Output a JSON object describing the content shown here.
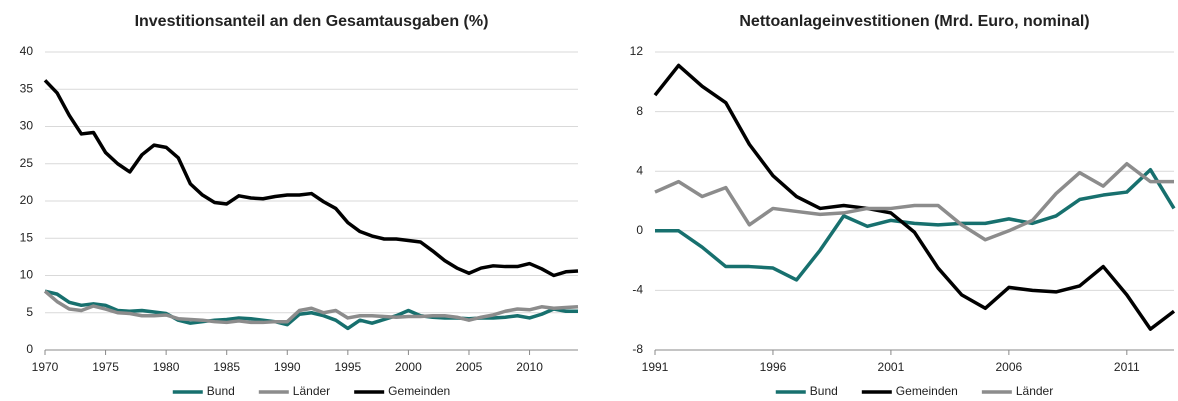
{
  "chart_data": [
    {
      "type": "line",
      "title": "Investitionsanteil an den Gesamtausgaben (%)",
      "x": [
        1970,
        1971,
        1972,
        1973,
        1974,
        1975,
        1976,
        1977,
        1978,
        1979,
        1980,
        1981,
        1982,
        1983,
        1984,
        1985,
        1986,
        1987,
        1988,
        1989,
        1990,
        1991,
        1992,
        1993,
        1994,
        1995,
        1996,
        1997,
        1998,
        1999,
        2000,
        2001,
        2002,
        2003,
        2004,
        2005,
        2006,
        2007,
        2008,
        2009,
        2010,
        2011,
        2012,
        2013,
        2014
      ],
      "xlim": [
        1970,
        2014
      ],
      "xticks": [
        1970,
        1975,
        1980,
        1985,
        1990,
        1995,
        2000,
        2005,
        2010
      ],
      "ylim": [
        0,
        40
      ],
      "yticks": [
        0,
        5,
        10,
        15,
        20,
        25,
        30,
        35,
        40
      ],
      "grid": true,
      "series": [
        {
          "name": "Bund",
          "color": "#17706e",
          "values": [
            7.9,
            7.5,
            6.4,
            6.0,
            6.2,
            6.0,
            5.3,
            5.2,
            5.3,
            5.1,
            4.9,
            4.0,
            3.6,
            3.8,
            4.0,
            4.1,
            4.3,
            4.2,
            4.0,
            3.8,
            3.4,
            4.8,
            5.0,
            4.6,
            4.0,
            2.9,
            4.0,
            3.6,
            4.1,
            4.6,
            5.3,
            4.6,
            4.4,
            4.3,
            4.3,
            4.2,
            4.3,
            4.3,
            4.4,
            4.6,
            4.3,
            4.8,
            5.5,
            5.2,
            5.2
          ]
        },
        {
          "name": "Länder",
          "color": "#8c8c8c",
          "values": [
            7.9,
            6.5,
            5.5,
            5.3,
            5.9,
            5.5,
            5.0,
            4.9,
            4.6,
            4.6,
            4.7,
            4.2,
            4.1,
            4.0,
            3.8,
            3.7,
            3.9,
            3.7,
            3.7,
            3.8,
            3.8,
            5.3,
            5.6,
            5.0,
            5.3,
            4.3,
            4.6,
            4.6,
            4.5,
            4.4,
            4.5,
            4.5,
            4.6,
            4.6,
            4.4,
            4.0,
            4.4,
            4.7,
            5.2,
            5.5,
            5.4,
            5.8,
            5.6,
            5.7,
            5.8
          ]
        },
        {
          "name": "Gemeinden",
          "color": "#000000",
          "values": [
            36.2,
            34.5,
            31.5,
            29.0,
            29.2,
            26.5,
            25.0,
            23.9,
            26.2,
            27.5,
            27.2,
            25.8,
            22.3,
            20.8,
            19.8,
            19.6,
            20.7,
            20.4,
            20.3,
            20.6,
            20.8,
            20.8,
            21.0,
            19.9,
            19.0,
            17.1,
            15.9,
            15.3,
            14.9,
            14.9,
            14.7,
            14.5,
            13.3,
            12.0,
            11.0,
            10.3,
            11.0,
            11.3,
            11.2,
            11.2,
            11.6,
            10.9,
            10.0,
            10.5,
            10.6
          ]
        }
      ]
    },
    {
      "type": "line",
      "title": "Nettoanlageinvestitionen  (Mrd. Euro, nominal)",
      "x": [
        1991,
        1992,
        1993,
        1994,
        1995,
        1996,
        1997,
        1998,
        1999,
        2000,
        2001,
        2002,
        2003,
        2004,
        2005,
        2006,
        2007,
        2008,
        2009,
        2010,
        2011,
        2012,
        2013
      ],
      "xlim": [
        1991,
        2013
      ],
      "xticks": [
        1991,
        1996,
        2001,
        2006,
        2011
      ],
      "ylim": [
        -8,
        12
      ],
      "yticks": [
        -8,
        -4,
        0,
        4,
        8,
        12
      ],
      "grid": true,
      "series": [
        {
          "name": "Bund",
          "color": "#17706e",
          "values": [
            0,
            0,
            -1.1,
            -2.4,
            -2.4,
            -2.5,
            -3.3,
            -1.3,
            1.0,
            0.3,
            0.7,
            0.5,
            0.4,
            0.5,
            0.5,
            0.8,
            0.5,
            1.0,
            2.1,
            2.4,
            2.6,
            4.1,
            1.5
          ]
        },
        {
          "name": "Gemeinden",
          "color": "#000000",
          "values": [
            9.1,
            11.1,
            9.7,
            8.6,
            5.8,
            3.7,
            2.3,
            1.5,
            1.7,
            1.5,
            1.2,
            -0.1,
            -2.5,
            -4.3,
            -5.2,
            -3.8,
            -4.0,
            -4.1,
            -3.7,
            -2.4,
            -4.3,
            -6.6,
            -5.4
          ]
        },
        {
          "name": "Länder",
          "color": "#8c8c8c",
          "values": [
            2.6,
            3.3,
            2.3,
            2.9,
            0.4,
            1.5,
            1.3,
            1.1,
            1.2,
            1.5,
            1.5,
            1.7,
            1.7,
            0.4,
            -0.6,
            0.0,
            0.7,
            2.5,
            3.9,
            3.0,
            4.5,
            3.3,
            3.3
          ]
        }
      ]
    }
  ]
}
